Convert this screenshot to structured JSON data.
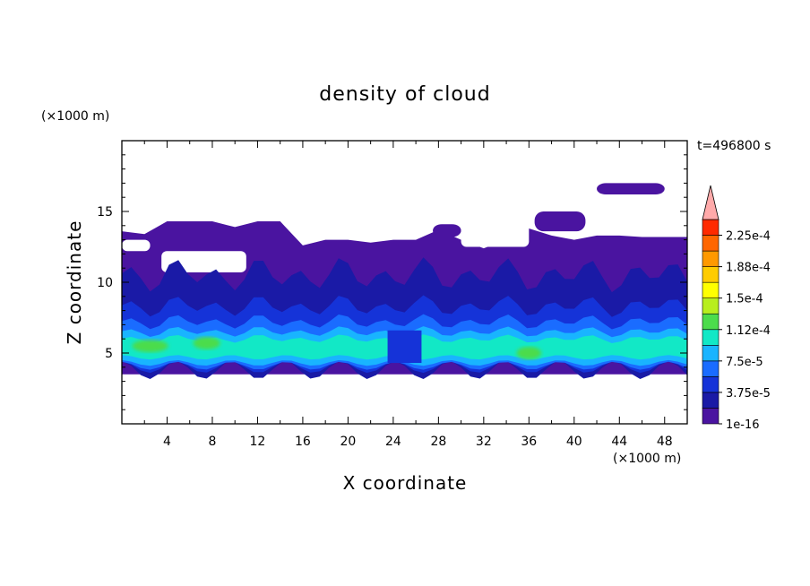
{
  "chart_data": {
    "type": "heatmap",
    "title": "density of cloud",
    "xlabel": "X coordinate",
    "ylabel": "Z coordinate",
    "x_unit": "(×1000 m)",
    "y_unit": "(×1000 m)",
    "time_label": "t=496800 s",
    "xlim": [
      0,
      50
    ],
    "ylim": [
      0,
      20
    ],
    "xticks": [
      "4",
      "8",
      "12",
      "16",
      "20",
      "24",
      "28",
      "32",
      "36",
      "40",
      "44",
      "48"
    ],
    "yticks": [
      "5",
      "10",
      "15"
    ],
    "colorbar": {
      "labels": [
        "1e-16",
        "3.75e-5",
        "7.5e-5",
        "1.12e-4",
        "1.5e-4",
        "1.88e-4",
        "2.25e-4"
      ],
      "colors": [
        "#4a14a0",
        "#1a1aa6",
        "#1533d8",
        "#1a6cff",
        "#19b4ff",
        "#12e8c6",
        "#4cdc4c",
        "#b8ee1e",
        "#ffff00",
        "#ffcc00",
        "#ff9900",
        "#ff6600",
        "#ff2a00",
        "#ffaaaa"
      ],
      "overflow_color": "#ffaaaa"
    },
    "field": {
      "cloud_base_z": 3.5,
      "cloud_top_z": [
        13.6,
        13.4,
        14.3,
        14.3,
        14.3,
        13.9,
        14.3,
        14.3,
        12.6,
        13.0,
        13.0,
        12.8,
        13.0,
        13.0,
        13.7,
        13.0,
        12.4,
        13.0,
        13.8,
        13.3,
        13.0,
        13.3,
        13.3,
        13.2
      ],
      "top_x": [
        0,
        2,
        4,
        6,
        8,
        10,
        12,
        14,
        16,
        18,
        20,
        22,
        24,
        26,
        28,
        30,
        32,
        34,
        36,
        38,
        40,
        42,
        44,
        46
      ],
      "core_band_z": [
        4.5,
        6.2
      ],
      "max_density_location": [
        2.5,
        5.5
      ]
    }
  }
}
